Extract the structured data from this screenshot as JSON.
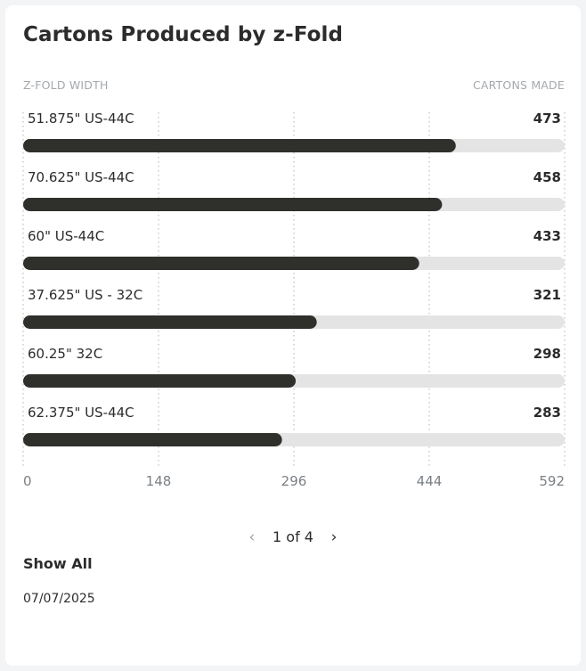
{
  "card": {
    "title": "Cartons Produced by z-Fold",
    "left_header": "Z-FOLD WIDTH",
    "right_header": "CARTONS MADE",
    "pager": {
      "prev_icon": "chevron-left-icon",
      "next_icon": "chevron-right-icon",
      "label": "1 of 4"
    },
    "show_all": "Show All",
    "date": "07/07/2025"
  },
  "chart_data": {
    "type": "bar",
    "orientation": "horizontal",
    "categories": [
      "51.875\" US-44C",
      "70.625\" US-44C",
      "60\" US-44C",
      "37.625\" US - 32C",
      "60.25\" 32C",
      "62.375\" US-44C"
    ],
    "values": [
      473,
      458,
      433,
      321,
      298,
      283
    ],
    "xlim": [
      0,
      592
    ],
    "x_ticks": [
      0,
      148,
      296,
      444,
      592
    ],
    "grid": true,
    "colors": {
      "bar": "#2f302c",
      "track": "#e4e4e4",
      "grid": "#c4c4c4"
    }
  }
}
